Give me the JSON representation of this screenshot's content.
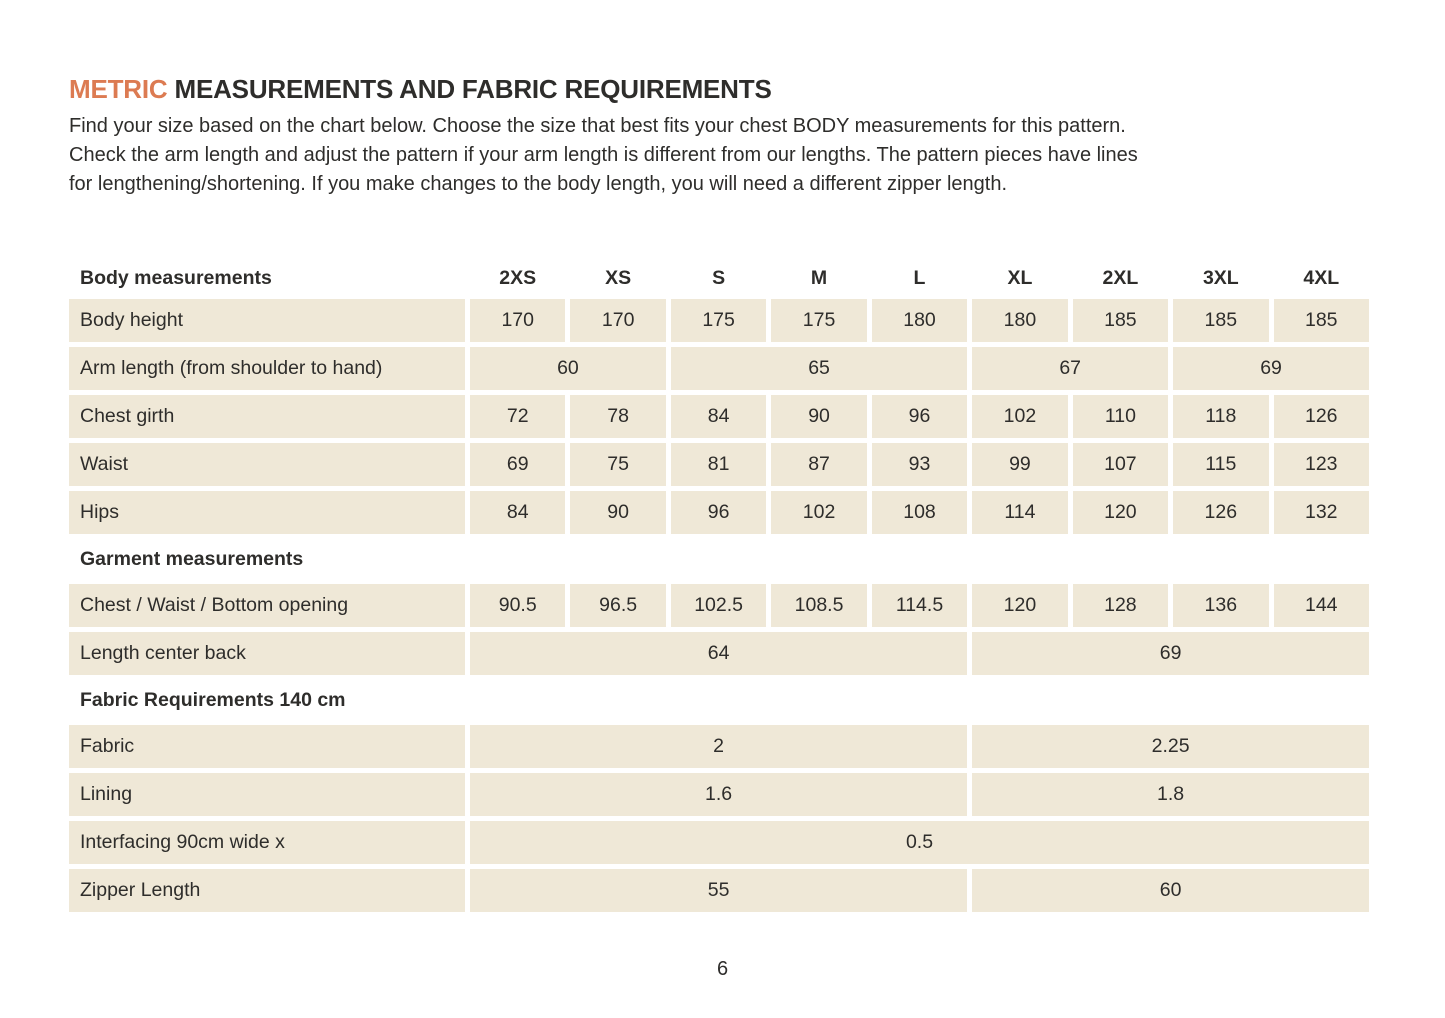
{
  "title": {
    "highlight": "METRIC",
    "rest": "MEASUREMENTS AND FABRIC REQUIREMENTS"
  },
  "intro": {
    "lines": [
      "Find your size based on the chart below. Choose the size that best fits your chest BODY measurements for this pattern.",
      "Check the arm length and adjust the pattern if your arm length is different from our lengths. The pattern pieces have lines",
      "for lengthening/shortening. If you make changes to the body length, you will need a different zipper length."
    ]
  },
  "table": {
    "header_label": "Body measurements",
    "sizes": [
      "2XS",
      "XS",
      "S",
      "M",
      "L",
      "XL",
      "2XL",
      "3XL",
      "4XL"
    ],
    "body_height": {
      "label": "Body height",
      "values": [
        "170",
        "170",
        "175",
        "175",
        "180",
        "180",
        "185",
        "185",
        "185"
      ]
    },
    "arm_length": {
      "label": "Arm length (from shoulder to hand)",
      "values": [
        "60",
        "65",
        "67",
        "69"
      ]
    },
    "chest_girth": {
      "label": "Chest girth",
      "values": [
        "72",
        "78",
        "84",
        "90",
        "96",
        "102",
        "110",
        "118",
        "126"
      ]
    },
    "waist": {
      "label": "Waist",
      "values": [
        "69",
        "75",
        "81",
        "87",
        "93",
        "99",
        "107",
        "115",
        "123"
      ]
    },
    "hips": {
      "label": "Hips",
      "values": [
        "84",
        "90",
        "96",
        "102",
        "108",
        "114",
        "120",
        "126",
        "132"
      ]
    },
    "garment_section": "Garment measurements",
    "chest_waist_bottom": {
      "label": "Chest / Waist / Bottom opening",
      "values": [
        "90.5",
        "96.5",
        "102.5",
        "108.5",
        "114.5",
        "120",
        "128",
        "136",
        "144"
      ]
    },
    "length_center_back": {
      "label": "Length center back",
      "values": [
        "64",
        "69"
      ]
    },
    "fabric_section": "Fabric Requirements 140 cm",
    "fabric": {
      "label": "Fabric",
      "values": [
        "2",
        "2.25"
      ]
    },
    "lining": {
      "label": "Lining",
      "values": [
        "1.6",
        "1.8"
      ]
    },
    "interfacing": {
      "label": "Interfacing  90cm wide x",
      "values": [
        "0.5"
      ]
    },
    "zipper": {
      "label": "Zipper Length",
      "values": [
        "55",
        "60"
      ]
    }
  },
  "page": {
    "number": "6"
  },
  "colors": {
    "accent_orange": "#dc7b52",
    "cell_beige": "#efe8d7",
    "text_dark": "#2e2d2b"
  }
}
